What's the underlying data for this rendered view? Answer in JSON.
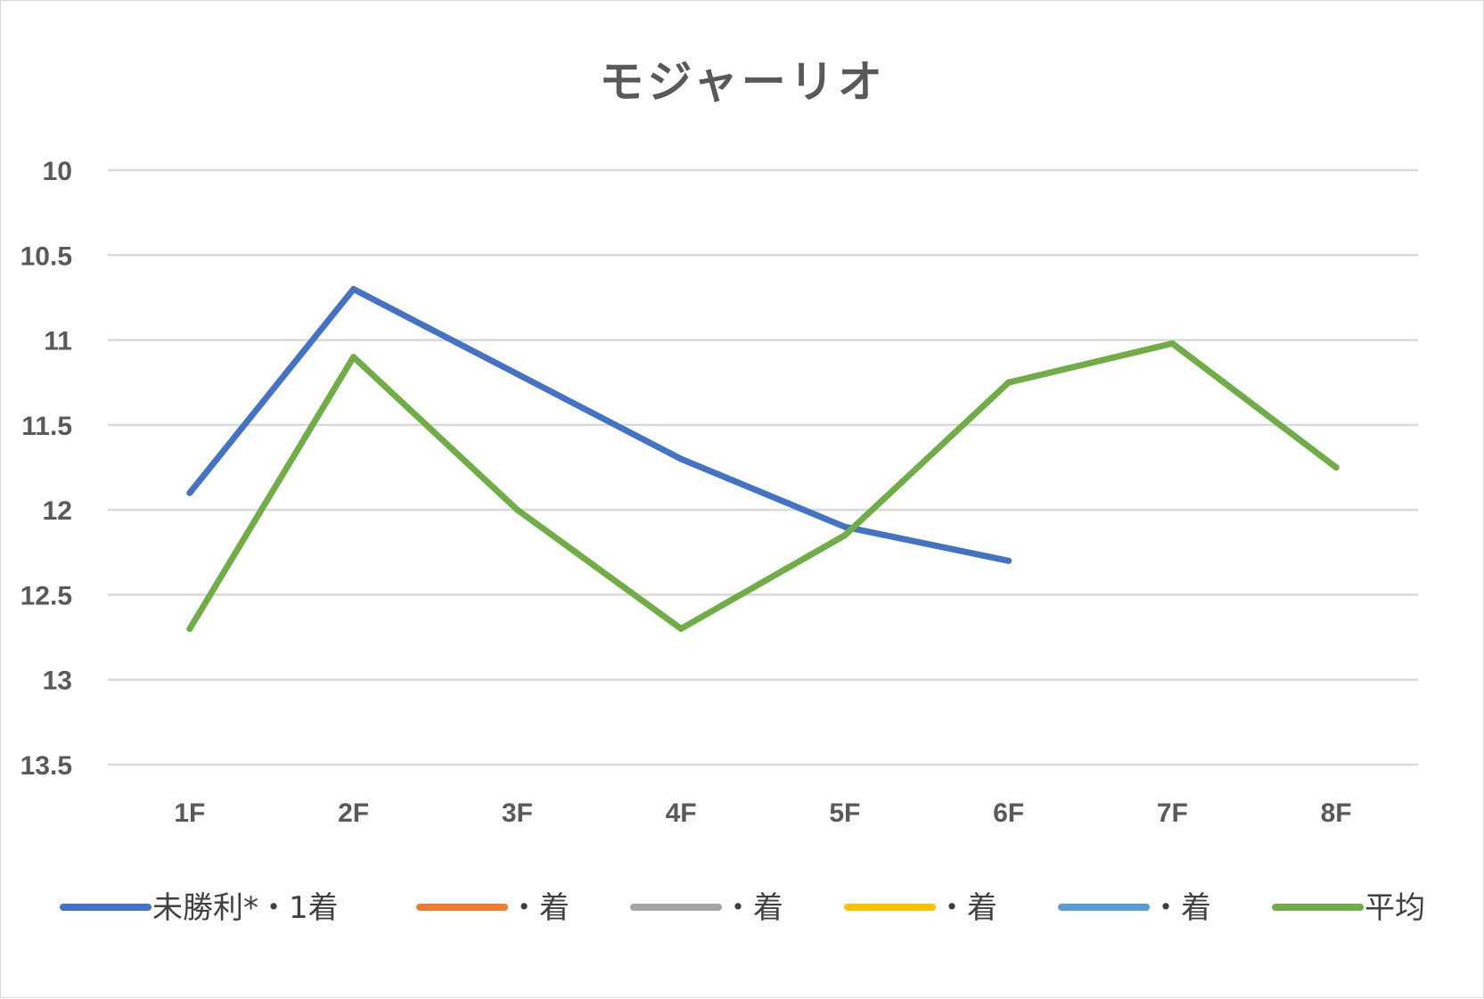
{
  "chart_data": {
    "type": "line",
    "title": "モジャーリオ",
    "categories": [
      "1F",
      "2F",
      "3F",
      "4F",
      "5F",
      "6F",
      "7F",
      "8F"
    ],
    "y_ticks": [
      "10",
      "10.5",
      "11",
      "11.5",
      "12",
      "12.5",
      "13",
      "13.5"
    ],
    "ylim": [
      10,
      13.5
    ],
    "y_reversed": true,
    "grid": true,
    "legend_position": "bottom",
    "series": [
      {
        "name": "未勝利*・1着",
        "color": "#4472c4",
        "values": [
          11.9,
          10.7,
          11.2,
          11.7,
          12.1,
          12.3,
          null,
          null
        ]
      },
      {
        "name": "・着",
        "color": "#ed7d31",
        "values": [
          null,
          null,
          null,
          null,
          null,
          null,
          null,
          null
        ]
      },
      {
        "name": "・着",
        "color": "#a5a5a5",
        "values": [
          null,
          null,
          null,
          null,
          null,
          null,
          null,
          null
        ]
      },
      {
        "name": "・着",
        "color": "#ffc000",
        "values": [
          null,
          null,
          null,
          null,
          null,
          null,
          null,
          null
        ]
      },
      {
        "name": "・着",
        "color": "#5b9bd5",
        "values": [
          null,
          null,
          null,
          null,
          null,
          null,
          null,
          null
        ]
      },
      {
        "name": "平均",
        "color": "#70ad47",
        "values": [
          12.7,
          11.1,
          12.0,
          12.7,
          12.15,
          11.25,
          11.02,
          11.75
        ]
      }
    ]
  }
}
